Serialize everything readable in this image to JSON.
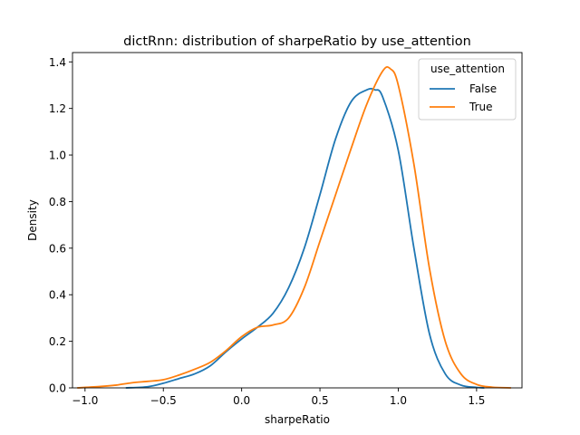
{
  "chart_data": {
    "type": "line",
    "title": "dictRnn: distribution of sharpeRatio by use_attention",
    "xlabel": "sharpeRatio",
    "ylabel": "Density",
    "xlim": [
      -1.08,
      1.79
    ],
    "ylim": [
      0,
      1.44
    ],
    "xticks": [
      -1.0,
      -0.5,
      0.0,
      0.5,
      1.0,
      1.5
    ],
    "xtick_labels": [
      "−1.0",
      "−0.5",
      "0.0",
      "0.5",
      "1.0",
      "1.5"
    ],
    "yticks": [
      0.0,
      0.2,
      0.4,
      0.6,
      0.8,
      1.0,
      1.2,
      1.4
    ],
    "ytick_labels": [
      "0.0",
      "0.2",
      "0.4",
      "0.6",
      "0.8",
      "1.0",
      "1.2",
      "1.4"
    ],
    "grid": false,
    "legend": {
      "title": "use_attention",
      "placement": "top-right"
    },
    "series": [
      {
        "name": "False",
        "color": "#1f77b4",
        "x": [
          -0.74,
          -0.6,
          -0.5,
          -0.4,
          -0.3,
          -0.2,
          -0.1,
          0.0,
          0.1,
          0.2,
          0.3,
          0.4,
          0.5,
          0.6,
          0.7,
          0.8,
          0.85,
          0.9,
          1.0,
          1.1,
          1.2,
          1.3,
          1.4,
          1.5,
          1.55
        ],
        "y": [
          0.0,
          0.005,
          0.02,
          0.04,
          0.06,
          0.095,
          0.155,
          0.21,
          0.26,
          0.32,
          0.43,
          0.6,
          0.83,
          1.07,
          1.23,
          1.28,
          1.28,
          1.25,
          1.02,
          0.6,
          0.23,
          0.06,
          0.012,
          0.002,
          0.0
        ]
      },
      {
        "name": "True",
        "color": "#ff7f0e",
        "x": [
          -1.05,
          -0.9,
          -0.8,
          -0.7,
          -0.6,
          -0.5,
          -0.4,
          -0.3,
          -0.2,
          -0.1,
          0.0,
          0.1,
          0.2,
          0.3,
          0.4,
          0.5,
          0.6,
          0.7,
          0.8,
          0.9,
          0.95,
          1.0,
          1.1,
          1.2,
          1.3,
          1.4,
          1.5,
          1.6,
          1.72
        ],
        "y": [
          0.0,
          0.006,
          0.012,
          0.022,
          0.028,
          0.035,
          0.055,
          0.08,
          0.11,
          0.16,
          0.22,
          0.26,
          0.27,
          0.3,
          0.43,
          0.63,
          0.83,
          1.03,
          1.22,
          1.36,
          1.37,
          1.3,
          0.96,
          0.51,
          0.2,
          0.06,
          0.015,
          0.003,
          0.0
        ]
      }
    ]
  }
}
